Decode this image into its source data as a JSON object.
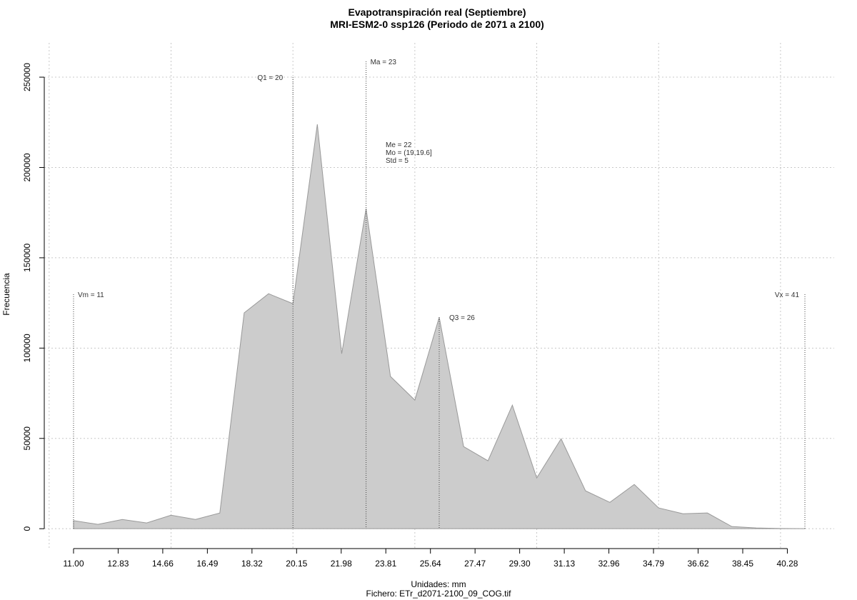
{
  "chart_data": {
    "type": "area",
    "title": "Evapotranspiración real (Septiembre)",
    "subtitle": "MRI-ESM2-0 ssp126 (Periodo de 2071 a 2100)",
    "x_label": "Unidades: mm",
    "caption": "Fichero: ETr_d2071-2100_09_COG.tif",
    "y_label": "Frecuencia",
    "x": [
      11,
      12,
      13,
      14,
      15,
      16,
      17,
      18,
      19,
      20,
      21,
      22,
      23,
      24,
      25,
      26,
      27,
      28,
      29,
      30,
      31,
      32,
      33,
      34,
      35,
      36,
      37,
      38,
      39,
      40,
      41
    ],
    "values": [
      4500,
      2400,
      5100,
      3200,
      7500,
      5100,
      8700,
      119500,
      130100,
      124600,
      223900,
      96900,
      177200,
      84300,
      71200,
      117100,
      45500,
      37600,
      68400,
      28100,
      49800,
      21000,
      14600,
      24500,
      11500,
      8300,
      8700,
      1200,
      400,
      100,
      0
    ],
    "color": "#cccccc",
    "xlim": [
      9.8,
      42.2
    ],
    "ylim": [
      -11000,
      269000
    ],
    "xticks": [
      {
        "value": 11,
        "label": "11.00"
      },
      12.83,
      14.66,
      16.49,
      18.32,
      20.15,
      21.98,
      23.81,
      25.64,
      27.47,
      {
        "value": 29.3,
        "label": "29.30"
      },
      31.13,
      32.96,
      34.79,
      36.62,
      38.45,
      40.28
    ],
    "yticks": [
      0,
      50000,
      100000,
      150000,
      200000,
      250000
    ],
    "xgrid": [
      10,
      15,
      20,
      25,
      30,
      35,
      40
    ],
    "grid": true,
    "annotations": [
      {
        "text": "Vm = 11",
        "x": 11
      },
      {
        "text": "Q1 = 20",
        "x": 20
      },
      {
        "text": "Ma = 23",
        "x": 23
      },
      {
        "text": "Q3 = 26",
        "x": 26
      },
      {
        "text": "Vx = 41",
        "x": 41
      }
    ],
    "stats": [
      "Me = 22",
      "Mo = (19,19.6]",
      "Std = 5"
    ]
  }
}
